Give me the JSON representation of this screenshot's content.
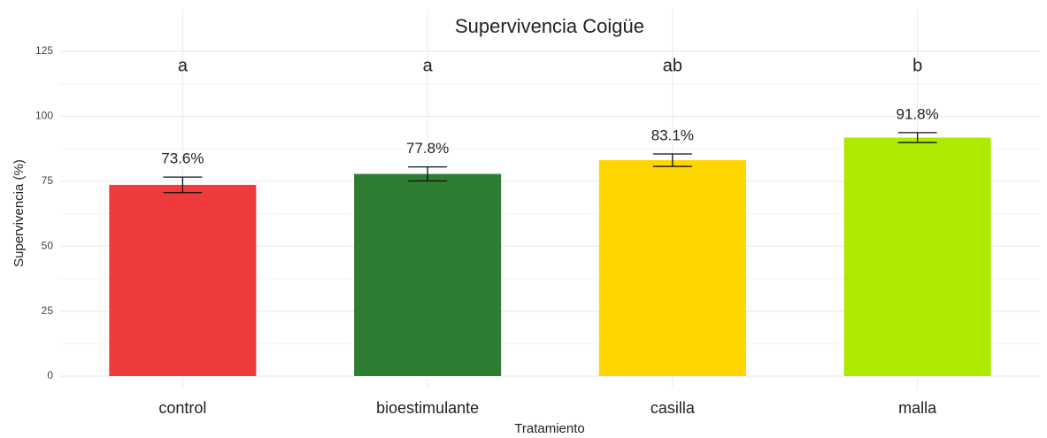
{
  "chart_data": {
    "type": "bar",
    "title": "Supervivencia Coigüe",
    "x_label": "Tratamiento",
    "y_label": "Supervivencia (%)",
    "categories": [
      "control",
      "bioestimulante",
      "casilla",
      "malla"
    ],
    "values": [
      73.6,
      77.8,
      83.1,
      91.8
    ],
    "value_labels": [
      "73.6%",
      "77.8%",
      "83.1%",
      "91.8%"
    ],
    "errors": [
      3,
      2.7,
      2.4,
      1.9
    ],
    "letters": [
      "a",
      "a",
      "ab",
      "b"
    ],
    "colors": [
      "#ef3b3b",
      "#2e7d32",
      "#ffd600",
      "#aeea00"
    ],
    "ylim": [
      0,
      125
    ],
    "yticks": [
      0,
      25,
      50,
      75,
      100,
      125
    ],
    "grid": true
  }
}
